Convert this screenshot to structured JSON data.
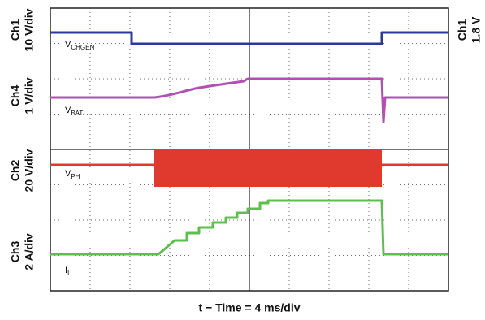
{
  "left_labels": [
    {
      "channel": "Ch1",
      "scale": "10 V/div"
    },
    {
      "channel": "Ch4",
      "scale": "1 V/div"
    },
    {
      "channel": "Ch2",
      "scale": "20 V/div"
    },
    {
      "channel": "Ch3",
      "scale": "2 A/div"
    }
  ],
  "right_label": {
    "channel": "Ch1",
    "level": "1.8 V"
  },
  "trace_labels": [
    {
      "name": "V",
      "sub": "CHGEN"
    },
    {
      "name": "V",
      "sub": "BAT"
    },
    {
      "name": "V",
      "sub": "PH"
    },
    {
      "name": "I",
      "sub": "L"
    }
  ],
  "time_label": "t − Time = 4 ms/div"
}
